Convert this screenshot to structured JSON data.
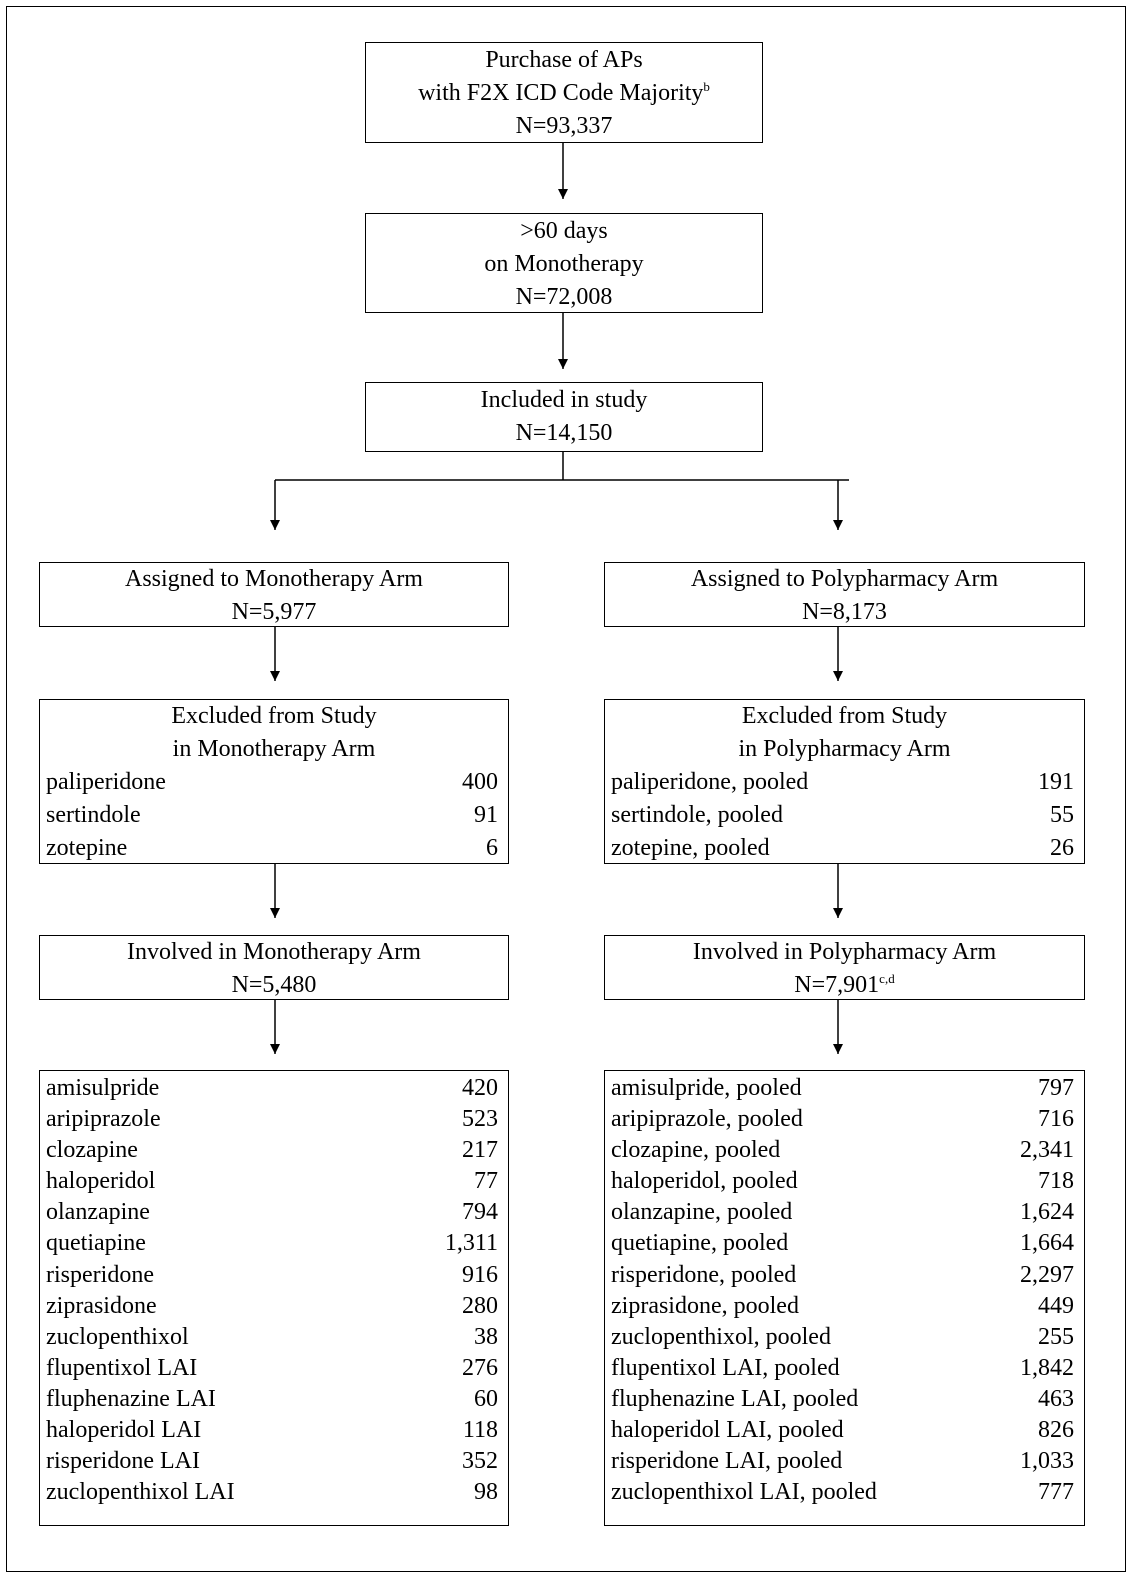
{
  "top_box": {
    "line1": "Purchase of APs",
    "line2": "with F2X ICD Code Majority",
    "line2_sup": "b",
    "count": "N=93,337"
  },
  "monotherapy_box": {
    "line1": ">60 days",
    "line2": "on Monotherapy",
    "count": "N=72,008"
  },
  "included_box": {
    "label": "Included in study",
    "count": "N=14,150"
  },
  "arms": [
    {
      "assigned": {
        "label": "Assigned to Monotherapy Arm",
        "count": "N=5,977"
      },
      "excluded": {
        "title": [
          "Excluded from Study",
          "in Monotherapy Arm"
        ],
        "rows": [
          [
            "paliperidone",
            "400"
          ],
          [
            "sertindole",
            "91"
          ],
          [
            "zotepine",
            "6"
          ]
        ]
      },
      "involved": {
        "label": "Involved in Monotherapy Arm",
        "count": "N=5,480"
      },
      "drugs": [
        [
          "amisulpride",
          "420"
        ],
        [
          "aripiprazole",
          "523"
        ],
        [
          "clozapine",
          "217"
        ],
        [
          "haloperidol",
          "77"
        ],
        [
          "olanzapine",
          "794"
        ],
        [
          "quetiapine",
          "1,311"
        ],
        [
          "risperidone",
          "916"
        ],
        [
          "ziprasidone",
          "280"
        ],
        [
          "zuclopenthixol",
          "38"
        ],
        [
          "flupentixol LAI",
          "276"
        ],
        [
          "fluphenazine LAI",
          "60"
        ],
        [
          "haloperidol LAI",
          "118"
        ],
        [
          "risperidone LAI",
          "352"
        ],
        [
          "zuclopenthixol LAI",
          "98"
        ]
      ]
    },
    {
      "assigned": {
        "label": "Assigned to Polypharmacy Arm",
        "count": "N=8,173"
      },
      "excluded": {
        "title": [
          "Excluded from Study",
          "in Polypharmacy Arm"
        ],
        "rows": [
          [
            "paliperidone, pooled",
            "191"
          ],
          [
            "sertindole, pooled",
            "55"
          ],
          [
            "zotepine, pooled",
            "26"
          ]
        ]
      },
      "involved": {
        "label": "Involved in Polypharmacy Arm",
        "count": "N=7,901",
        "count_sup": "c,d"
      },
      "drugs": [
        [
          "amisulpride, pooled",
          "797"
        ],
        [
          "aripiprazole, pooled",
          "716"
        ],
        [
          "clozapine, pooled",
          "2,341"
        ],
        [
          "haloperidol, pooled",
          "718"
        ],
        [
          "olanzapine, pooled",
          "1,624"
        ],
        [
          "quetiapine, pooled",
          "1,664"
        ],
        [
          "risperidone, pooled",
          "2,297"
        ],
        [
          "ziprasidone, pooled",
          "449"
        ],
        [
          "zuclopenthixol, pooled",
          "255"
        ],
        [
          "flupentixol LAI, pooled",
          "1,842"
        ],
        [
          "fluphenazine LAI, pooled",
          "463"
        ],
        [
          "haloperidol LAI, pooled",
          "826"
        ],
        [
          "risperidone LAI, pooled",
          "1,033"
        ],
        [
          "zuclopenthixol LAI, pooled",
          "777"
        ]
      ]
    }
  ]
}
